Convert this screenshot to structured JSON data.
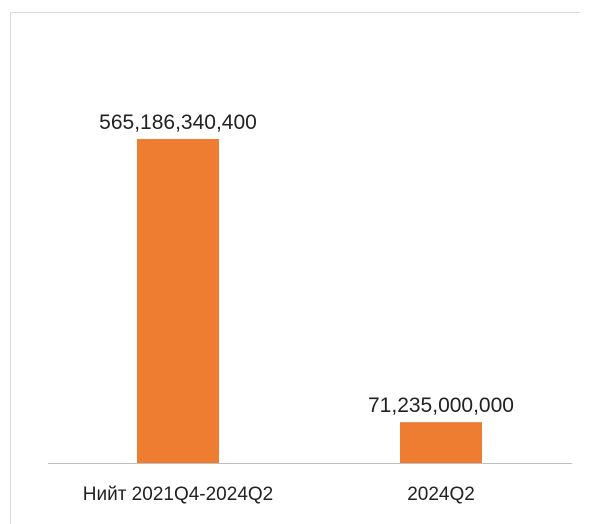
{
  "chart_data": {
    "type": "bar",
    "categories": [
      "Нийт 2021Q4-2024Q2",
      "2024Q2"
    ],
    "values": [
      565186340400,
      71235000000
    ],
    "value_labels": [
      "565,186,340,400",
      "71,235,000,000"
    ],
    "ylim": [
      0,
      700000000000
    ],
    "grid": false,
    "legend": "none",
    "bar_color": "#ee7d31",
    "axis_color": "#bfbfbf",
    "text_color": "#222222"
  }
}
